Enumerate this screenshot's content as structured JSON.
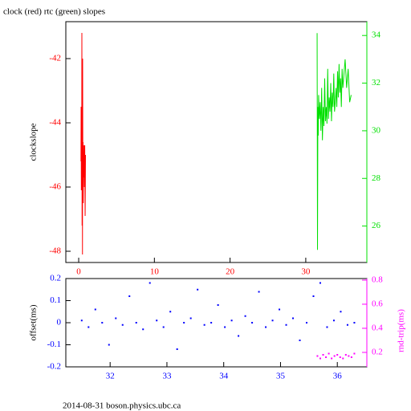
{
  "chart_data": [
    {
      "type": "line",
      "title": "clock (red) rtc (green) slopes",
      "ylabel": "clockslope",
      "xlim": [
        -1.7,
        38.07
      ],
      "ylim": [
        -48.35,
        -40.85
      ],
      "y2lim": [
        24.47,
        34.58
      ],
      "xticks": [
        0,
        10,
        20,
        30
      ],
      "yticks": [
        -48,
        -46,
        -44,
        -42
      ],
      "y2ticks": [
        26,
        28,
        30,
        32,
        34
      ],
      "series": [
        {
          "name": "clock",
          "color": "#ff0000",
          "x": [
            0.3,
            0.32,
            0.35,
            0.38,
            0.4,
            0.42,
            0.45,
            0.48,
            0.5,
            0.52,
            0.55,
            0.58,
            0.6,
            0.63,
            0.66,
            0.7,
            0.75,
            0.8,
            0.85,
            0.9
          ],
          "values": [
            -45.2,
            -43.5,
            -46.1,
            -44.8,
            -45.5,
            -41.2,
            -47.2,
            -44.3,
            -48.1,
            -42.0,
            -45.8,
            -44.6,
            -46.5,
            -44.9,
            -45.7,
            -44.7,
            -46.0,
            -44.7,
            -46.9,
            -45.0
          ]
        },
        {
          "name": "rtc",
          "color": "#00e000",
          "axis": "y2",
          "x": [
            31.5,
            31.55,
            31.6,
            31.65,
            31.7,
            31.8,
            31.9,
            32.0,
            32.1,
            32.2,
            32.3,
            32.4,
            32.5,
            32.6,
            32.7,
            32.8,
            32.9,
            33.0,
            33.1,
            33.2,
            33.3,
            33.4,
            33.5,
            33.6,
            33.7,
            33.8,
            33.9,
            34.0,
            34.1,
            34.2,
            34.3,
            34.4,
            34.5,
            34.6,
            34.7,
            34.8,
            34.9,
            35.0,
            35.2,
            35.4,
            35.6,
            35.8,
            36.0
          ],
          "values": [
            34.1,
            25.0,
            31.0,
            29.8,
            31.5,
            30.5,
            31.2,
            30.0,
            31.8,
            29.6,
            31.0,
            30.2,
            32.2,
            30.4,
            31.0,
            30.3,
            32.6,
            30.5,
            31.4,
            30.8,
            32.0,
            30.4,
            31.6,
            31.0,
            32.4,
            30.8,
            31.2,
            31.8,
            31.0,
            32.5,
            31.4,
            32.8,
            31.6,
            32.2,
            31.0,
            32.6,
            31.8,
            32.2,
            33.0,
            31.8,
            32.6,
            31.2,
            31.5
          ]
        }
      ]
    },
    {
      "type": "scatter",
      "ylabel": "offset(ms)",
      "y2label": "rnd-trip(ms)",
      "xlim": [
        31.22,
        36.52
      ],
      "ylim": [
        -0.2,
        0.2
      ],
      "y2lim": [
        0.08,
        0.813
      ],
      "xticks": [
        32,
        33,
        34,
        35,
        36
      ],
      "yticks": [
        -0.2,
        -0.1,
        0,
        0.1,
        0.2
      ],
      "y2ticks": [
        0.2,
        0.4,
        0.6,
        0.8
      ],
      "series": [
        {
          "name": "offset",
          "color": "#0000ff",
          "x": [
            31.5,
            31.62,
            31.74,
            31.86,
            31.98,
            32.1,
            32.22,
            32.34,
            32.46,
            32.58,
            32.7,
            32.82,
            32.94,
            33.06,
            33.18,
            33.3,
            33.42,
            33.54,
            33.66,
            33.78,
            33.9,
            34.02,
            34.14,
            34.26,
            34.38,
            34.5,
            34.62,
            34.74,
            34.86,
            34.98,
            35.1,
            35.22,
            35.34,
            35.46,
            35.58,
            35.7,
            35.82,
            35.94,
            36.06,
            36.18,
            36.3
          ],
          "values": [
            0.01,
            -0.02,
            0.06,
            0.0,
            -0.1,
            0.02,
            -0.01,
            0.12,
            0.0,
            -0.03,
            0.18,
            0.01,
            -0.02,
            0.05,
            -0.12,
            0.0,
            0.02,
            0.15,
            -0.01,
            0.0,
            0.08,
            -0.02,
            0.01,
            -0.06,
            0.03,
            0.0,
            0.14,
            -0.02,
            0.01,
            0.06,
            -0.01,
            0.02,
            -0.08,
            0.0,
            0.12,
            0.18,
            -0.02,
            0.01,
            0.05,
            -0.01,
            0.0
          ]
        },
        {
          "name": "rnd-trip",
          "color": "#ff00ff",
          "axis": "y2",
          "x": [
            35.65,
            35.7,
            35.75,
            35.8,
            35.85,
            35.9,
            35.95,
            36.0,
            36.05,
            36.1,
            36.15,
            36.2,
            36.25,
            36.3
          ],
          "values": [
            0.17,
            0.15,
            0.18,
            0.16,
            0.19,
            0.15,
            0.17,
            0.18,
            0.16,
            0.15,
            0.18,
            0.17,
            0.16,
            0.19
          ]
        }
      ]
    }
  ],
  "footer": "2014-08-31 boson.physics.ubc.ca"
}
